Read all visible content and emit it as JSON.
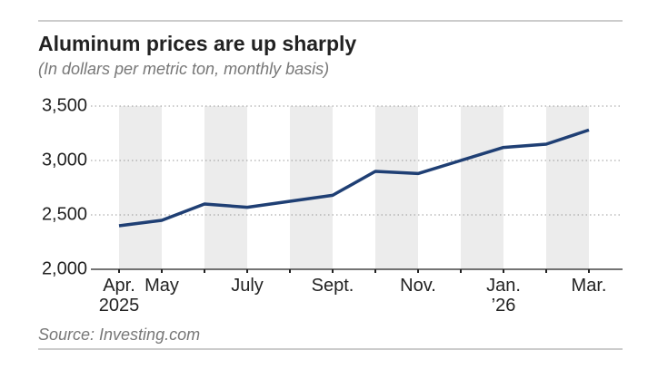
{
  "chart_data": {
    "type": "line",
    "title": "Aluminum prices are up sharply",
    "subtitle": "(In dollars per metric ton, monthly basis)",
    "source": "Source: Investing.com",
    "categories": [
      "Apr.\n2025",
      "May",
      null,
      "July",
      null,
      "Sept.",
      null,
      "Nov.",
      null,
      "Jan.\n’26",
      null,
      "Mar."
    ],
    "series": [
      {
        "name": "Aluminum",
        "color": "#1f3f74",
        "values": [
          2400,
          2450,
          2600,
          2570,
          2625,
          2680,
          2900,
          2880,
          3000,
          3120,
          3150,
          3280
        ]
      }
    ],
    "ylim": [
      2000,
      3500
    ],
    "yticks": [
      {
        "value": 2000,
        "label": "2,000"
      },
      {
        "value": 2500,
        "label": "2,500"
      },
      {
        "value": 3000,
        "label": "3,000"
      },
      {
        "value": 3500,
        "label": "3,500"
      }
    ],
    "grid": true
  }
}
